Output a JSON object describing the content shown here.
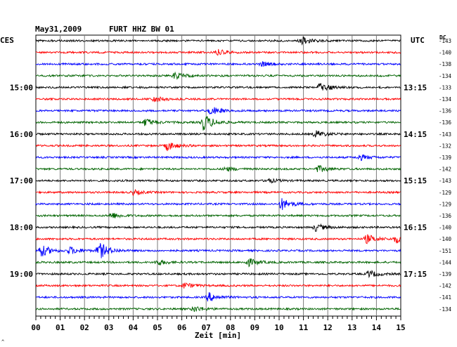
{
  "header": {
    "date": "May31,2009",
    "station": "FURT HHZ BW 01",
    "left_zone": "CES",
    "right_zone": "UTC",
    "dc_label": "DC",
    "corner_mark": "^"
  },
  "chart_data": {
    "type": "line",
    "title": "May31,2009   FURT HHZ BW 01",
    "xlabel": "Zeit [min]",
    "xlim": [
      0,
      15
    ],
    "x_ticks": [
      "00",
      "01",
      "02",
      "03",
      "04",
      "05",
      "06",
      "07",
      "08",
      "09",
      "10",
      "11",
      "12",
      "13",
      "14",
      "15"
    ],
    "grid": true,
    "trace_colors": [
      "#000000",
      "#ff0000",
      "#0000ff",
      "#006400"
    ],
    "left_time_labels": [
      {
        "row": 4,
        "label": "15:00"
      },
      {
        "row": 8,
        "label": "16:00"
      },
      {
        "row": 12,
        "label": "17:00"
      },
      {
        "row": 16,
        "label": "18:00"
      },
      {
        "row": 20,
        "label": "19:00"
      }
    ],
    "right_time_labels": [
      {
        "row": 4,
        "label": "13:15"
      },
      {
        "row": 8,
        "label": "14:15"
      },
      {
        "row": 12,
        "label": "15:15"
      },
      {
        "row": 16,
        "label": "16:15"
      },
      {
        "row": 20,
        "label": "17:15"
      }
    ],
    "dc_offsets": [
      "-143",
      "-140",
      "-138",
      "-134",
      "-133",
      "-134",
      "-136",
      "-136",
      "-143",
      "-132",
      "-139",
      "-142",
      "-143",
      "-129",
      "-129",
      "-136",
      "-140",
      "-140",
      "-151",
      "-144",
      "-139",
      "-142",
      "-141",
      "-134"
    ],
    "events": [
      {
        "row": 0,
        "minute": 10.9,
        "amp": 1.5
      },
      {
        "row": 1,
        "minute": 7.5,
        "amp": 1.2
      },
      {
        "row": 2,
        "minute": 9.3,
        "amp": 1.0
      },
      {
        "row": 3,
        "minute": 5.7,
        "amp": 1.6
      },
      {
        "row": 4,
        "minute": 11.7,
        "amp": 2.2
      },
      {
        "row": 5,
        "minute": 4.9,
        "amp": 1.2
      },
      {
        "row": 6,
        "minute": 7.2,
        "amp": 1.8
      },
      {
        "row": 7,
        "minute": 6.9,
        "amp": 3.8
      },
      {
        "row": 7,
        "minute": 4.5,
        "amp": 1.7
      },
      {
        "row": 8,
        "minute": 11.5,
        "amp": 1.6
      },
      {
        "row": 9,
        "minute": 5.4,
        "amp": 2.0
      },
      {
        "row": 10,
        "minute": 13.3,
        "amp": 1.3
      },
      {
        "row": 11,
        "minute": 11.6,
        "amp": 1.5
      },
      {
        "row": 11,
        "minute": 7.8,
        "amp": 1.0
      },
      {
        "row": 12,
        "minute": 9.5,
        "amp": 1.0
      },
      {
        "row": 13,
        "minute": 4.0,
        "amp": 1.0
      },
      {
        "row": 14,
        "minute": 10.1,
        "amp": 2.6
      },
      {
        "row": 15,
        "minute": 3.1,
        "amp": 1.4
      },
      {
        "row": 16,
        "minute": 11.5,
        "amp": 1.6
      },
      {
        "row": 17,
        "minute": 13.6,
        "amp": 2.0
      },
      {
        "row": 17,
        "minute": 14.8,
        "amp": 1.6
      },
      {
        "row": 18,
        "minute": 0.2,
        "amp": 2.8
      },
      {
        "row": 18,
        "minute": 2.6,
        "amp": 3.8
      },
      {
        "row": 18,
        "minute": 1.4,
        "amp": 1.6
      },
      {
        "row": 19,
        "minute": 8.7,
        "amp": 1.8
      },
      {
        "row": 19,
        "minute": 5.0,
        "amp": 1.2
      },
      {
        "row": 20,
        "minute": 13.7,
        "amp": 1.5
      },
      {
        "row": 21,
        "minute": 6.1,
        "amp": 1.2
      },
      {
        "row": 22,
        "minute": 7.1,
        "amp": 2.0
      },
      {
        "row": 23,
        "minute": 6.5,
        "amp": 1.3
      }
    ]
  }
}
